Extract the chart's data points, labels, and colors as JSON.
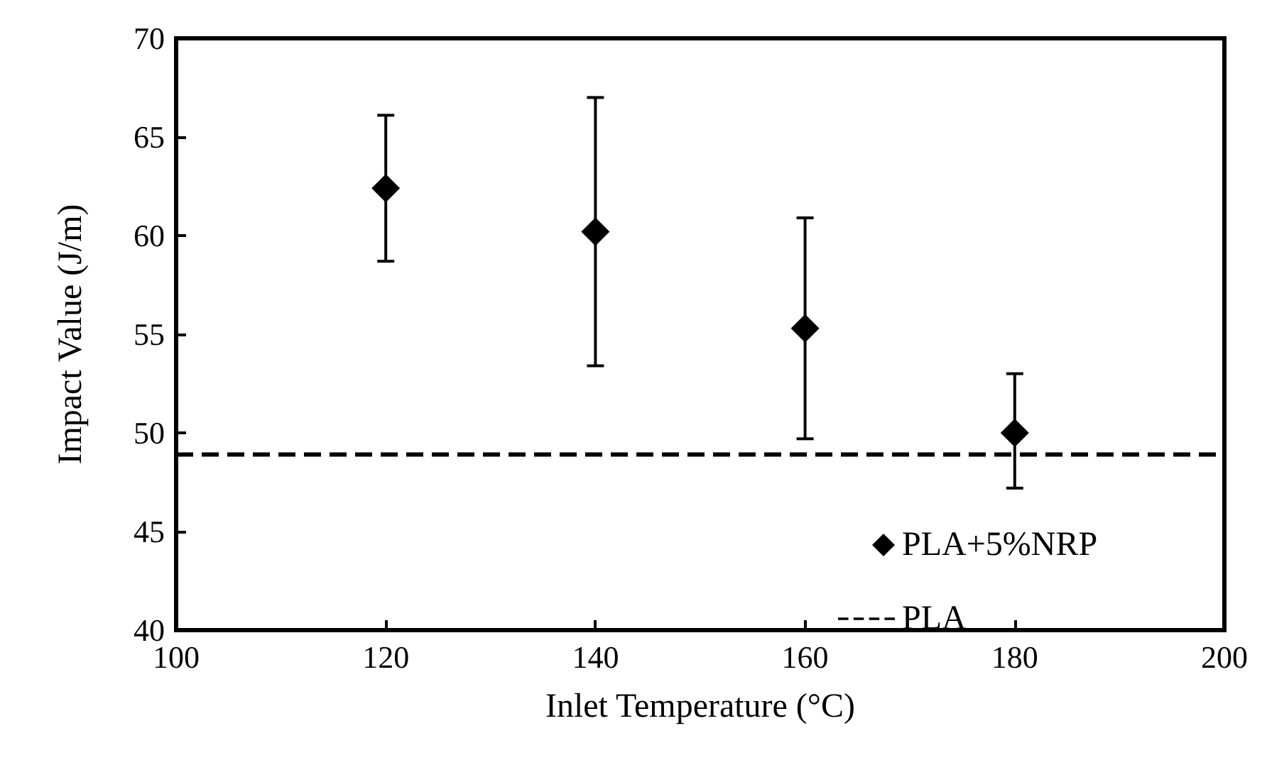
{
  "chart_data": {
    "type": "scatter",
    "xlabel": "Inlet Temperature (°C)",
    "ylabel": "Impact Value (J/m)",
    "series": [
      {
        "name": "PLA+5%NRP",
        "color": "#000000",
        "x": [
          120,
          140,
          160,
          180
        ],
        "values": [
          62.4,
          60.2,
          55.3,
          50.0
        ],
        "errors": [
          [
            58.7,
            66.1
          ],
          [
            53.4,
            67.0
          ],
          [
            49.7,
            60.9
          ],
          [
            47.2,
            53.0
          ]
        ]
      },
      {
        "name": "PLA",
        "type": "line",
        "color": "#000000",
        "x": [
          100,
          200
        ],
        "values": [
          48.9,
          48.9
        ],
        "line_style": "dashed",
        "marker": "none"
      }
    ],
    "marker": "diamond",
    "xlim": [
      100,
      200
    ],
    "xticks": [
      100,
      120,
      140,
      160,
      180,
      200
    ],
    "ylim": [
      40,
      70
    ],
    "yticks": [
      40,
      45,
      50,
      55,
      60,
      65,
      70
    ],
    "grid": false,
    "legend": "bottom right"
  }
}
